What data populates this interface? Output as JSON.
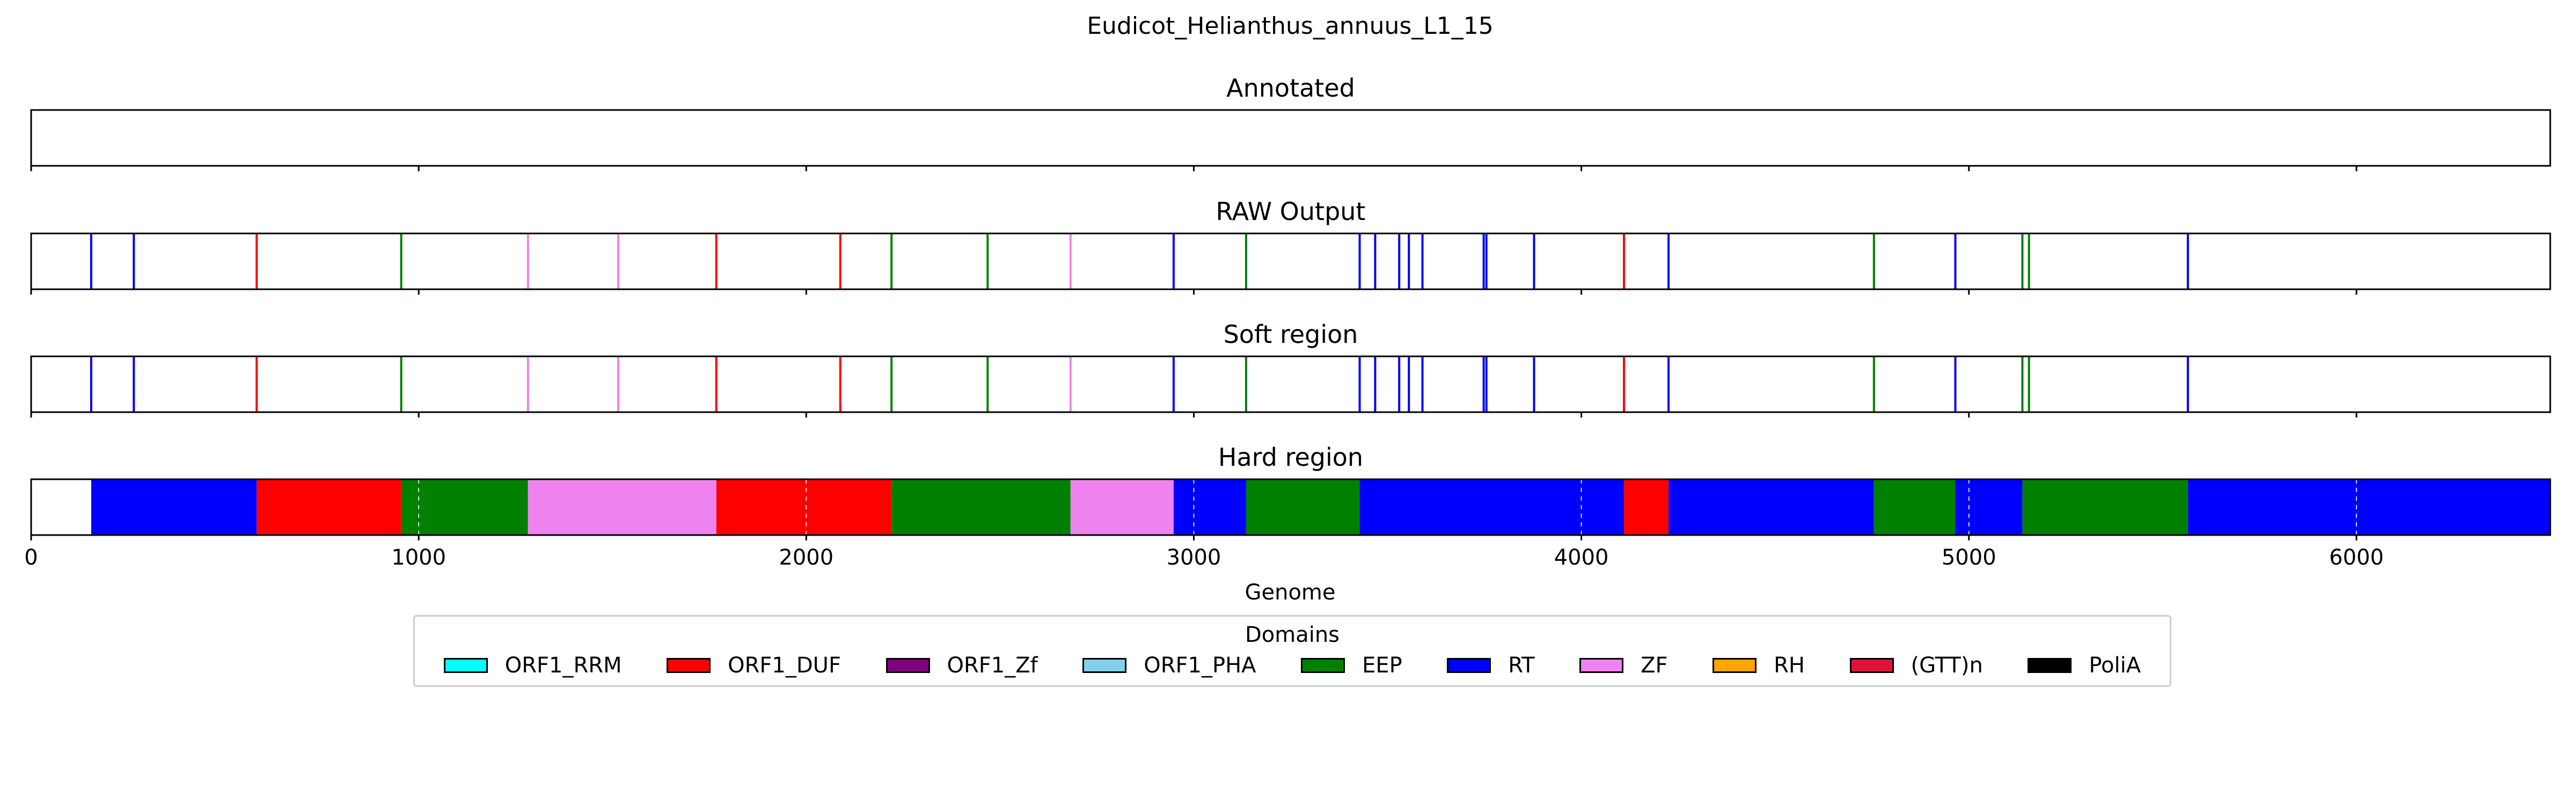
{
  "chart_data": {
    "type": "genome_track",
    "title": "Eudicot_Helianthus_annuus_L1_15",
    "xlabel": "Genome",
    "xlim": [
      0,
      6500
    ],
    "xticks": [
      0,
      1000,
      2000,
      3000,
      4000,
      5000,
      6000
    ],
    "grid": "dashed vertical on Hard region",
    "legend_placement": "below",
    "legend": {
      "title": "Domains",
      "entries": [
        {
          "label": "ORF1_RRM",
          "color": "#00ffff"
        },
        {
          "label": "ORF1_DUF",
          "color": "#ff0000"
        },
        {
          "label": "ORF1_Zf",
          "color": "#800080"
        },
        {
          "label": "ORF1_PHA",
          "color": "#87ceeb"
        },
        {
          "label": "EEP",
          "color": "#008000"
        },
        {
          "label": "RT",
          "color": "#0000ff"
        },
        {
          "label": "ZF",
          "color": "#ee82ee"
        },
        {
          "label": "RH",
          "color": "#ffa500"
        },
        {
          "label": "(GTT)n",
          "color": "#dc143c"
        },
        {
          "label": "PoliA",
          "color": "#000000"
        }
      ]
    },
    "panels": [
      {
        "title": "Annotated",
        "kind": "lines",
        "items": []
      },
      {
        "title": "RAW Output",
        "kind": "lines",
        "items": [
          {
            "x": 155,
            "domain": "RT"
          },
          {
            "x": 265,
            "domain": "RT"
          },
          {
            "x": 582,
            "domain": "ORF1_DUF"
          },
          {
            "x": 955,
            "domain": "EEP"
          },
          {
            "x": 1282,
            "domain": "ZF"
          },
          {
            "x": 1515,
            "domain": "ZF"
          },
          {
            "x": 1768,
            "domain": "ORF1_DUF"
          },
          {
            "x": 2088,
            "domain": "ORF1_DUF"
          },
          {
            "x": 2220,
            "domain": "EEP"
          },
          {
            "x": 2468,
            "domain": "EEP"
          },
          {
            "x": 2682,
            "domain": "ZF"
          },
          {
            "x": 2948,
            "domain": "RT"
          },
          {
            "x": 3135,
            "domain": "EEP"
          },
          {
            "x": 3428,
            "domain": "RT"
          },
          {
            "x": 3468,
            "domain": "RT"
          },
          {
            "x": 3530,
            "domain": "RT"
          },
          {
            "x": 3555,
            "domain": "RT"
          },
          {
            "x": 3590,
            "domain": "RT"
          },
          {
            "x": 3748,
            "domain": "RT"
          },
          {
            "x": 3755,
            "domain": "RT"
          },
          {
            "x": 3878,
            "domain": "RT"
          },
          {
            "x": 4110,
            "domain": "ORF1_DUF"
          },
          {
            "x": 4225,
            "domain": "RT"
          },
          {
            "x": 4755,
            "domain": "EEP"
          },
          {
            "x": 4965,
            "domain": "RT"
          },
          {
            "x": 5138,
            "domain": "EEP"
          },
          {
            "x": 5155,
            "domain": "EEP"
          },
          {
            "x": 5565,
            "domain": "RT"
          }
        ]
      },
      {
        "title": "Soft region",
        "kind": "lines",
        "items": [
          {
            "x": 155,
            "domain": "RT"
          },
          {
            "x": 265,
            "domain": "RT"
          },
          {
            "x": 582,
            "domain": "ORF1_DUF"
          },
          {
            "x": 955,
            "domain": "EEP"
          },
          {
            "x": 1282,
            "domain": "ZF"
          },
          {
            "x": 1515,
            "domain": "ZF"
          },
          {
            "x": 1768,
            "domain": "ORF1_DUF"
          },
          {
            "x": 2088,
            "domain": "ORF1_DUF"
          },
          {
            "x": 2220,
            "domain": "EEP"
          },
          {
            "x": 2468,
            "domain": "EEP"
          },
          {
            "x": 2682,
            "domain": "ZF"
          },
          {
            "x": 2948,
            "domain": "RT"
          },
          {
            "x": 3135,
            "domain": "EEP"
          },
          {
            "x": 3428,
            "domain": "RT"
          },
          {
            "x": 3468,
            "domain": "RT"
          },
          {
            "x": 3530,
            "domain": "RT"
          },
          {
            "x": 3555,
            "domain": "RT"
          },
          {
            "x": 3590,
            "domain": "RT"
          },
          {
            "x": 3748,
            "domain": "RT"
          },
          {
            "x": 3755,
            "domain": "RT"
          },
          {
            "x": 3878,
            "domain": "RT"
          },
          {
            "x": 4110,
            "domain": "ORF1_DUF"
          },
          {
            "x": 4225,
            "domain": "RT"
          },
          {
            "x": 4755,
            "domain": "EEP"
          },
          {
            "x": 4965,
            "domain": "RT"
          },
          {
            "x": 5138,
            "domain": "EEP"
          },
          {
            "x": 5155,
            "domain": "EEP"
          },
          {
            "x": 5565,
            "domain": "RT"
          }
        ]
      },
      {
        "title": "Hard region",
        "kind": "blocks",
        "items": [
          {
            "start": 155,
            "end": 582,
            "domain": "RT"
          },
          {
            "start": 582,
            "end": 955,
            "domain": "ORF1_DUF"
          },
          {
            "start": 955,
            "end": 1282,
            "domain": "EEP"
          },
          {
            "start": 1282,
            "end": 1768,
            "domain": "ZF"
          },
          {
            "start": 1768,
            "end": 2220,
            "domain": "ORF1_DUF"
          },
          {
            "start": 2220,
            "end": 2682,
            "domain": "EEP"
          },
          {
            "start": 2682,
            "end": 2948,
            "domain": "ZF"
          },
          {
            "start": 2948,
            "end": 3135,
            "domain": "RT"
          },
          {
            "start": 3135,
            "end": 3428,
            "domain": "EEP"
          },
          {
            "start": 3428,
            "end": 4110,
            "domain": "RT"
          },
          {
            "start": 4110,
            "end": 4225,
            "domain": "ORF1_DUF"
          },
          {
            "start": 4225,
            "end": 4755,
            "domain": "RT"
          },
          {
            "start": 4755,
            "end": 4965,
            "domain": "EEP"
          },
          {
            "start": 4965,
            "end": 5138,
            "domain": "RT"
          },
          {
            "start": 5138,
            "end": 5565,
            "domain": "EEP"
          },
          {
            "start": 5565,
            "end": 6500,
            "domain": "RT"
          }
        ]
      }
    ]
  }
}
